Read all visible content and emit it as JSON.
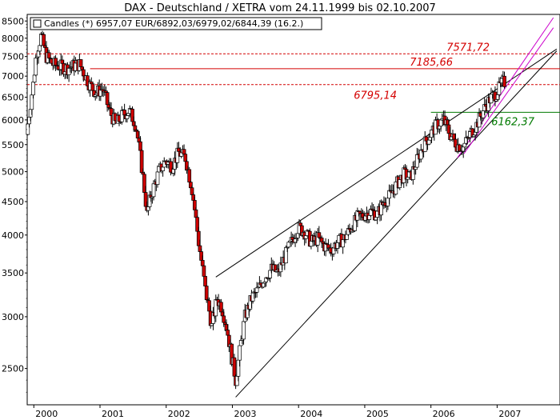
{
  "chart_data": {
    "type": "candlestick",
    "title": "DAX - Deutschland / XETRA vom 24.11.1999 bis 02.10.2007",
    "legend": "Candles (*) 6957,07 EUR/6892,03/6979,02/6844,39 (16.2.)",
    "y_scale": "log",
    "ylim": [
      2200,
      8700
    ],
    "xlim": [
      1999.9,
      2007.95
    ],
    "y_ticks": [
      2500,
      3000,
      3500,
      4000,
      4500,
      5000,
      5500,
      6000,
      6500,
      7000,
      7500,
      8000,
      8500
    ],
    "x_ticks": [
      {
        "label": "2000",
        "x": 2000.0
      },
      {
        "label": "2001",
        "x": 2001.0
      },
      {
        "label": "2002",
        "x": 2002.0
      },
      {
        "label": "2003",
        "x": 2003.0
      },
      {
        "label": "2004",
        "x": 2004.0
      },
      {
        "label": "2005",
        "x": 2005.0
      },
      {
        "label": "2006",
        "x": 2006.0
      },
      {
        "label": "2007",
        "x": 2007.0
      }
    ],
    "levels": [
      {
        "value": 7571.72,
        "label": "7571,72",
        "color": "#d40000",
        "style": "dashed"
      },
      {
        "value": 7185.66,
        "label": "7185,66",
        "color": "#d40000",
        "style": "solid"
      },
      {
        "value": 6795.14,
        "label": "6795,14",
        "color": "#d40000",
        "style": "dashed"
      },
      {
        "value": 6162.37,
        "label": "6162,37",
        "color": "#007a00",
        "style": "solid"
      }
    ],
    "trendlines": [
      {
        "x1": 2002.75,
        "y1": 3450,
        "x2": 2007.9,
        "y2": 7700,
        "color": "#000000"
      },
      {
        "x1": 2003.05,
        "y1": 2260,
        "x2": 2007.9,
        "y2": 7650,
        "color": "#000000"
      },
      {
        "x1": 2006.4,
        "y1": 5250,
        "x2": 2007.85,
        "y2": 8600,
        "color": "#cc00cc"
      },
      {
        "x1": 2006.5,
        "y1": 5330,
        "x2": 2007.85,
        "y2": 8300,
        "color": "#cc00cc"
      }
    ],
    "colors": {
      "up": "#ffffff",
      "down": "#cc0000",
      "wick": "#000000"
    },
    "path": [
      [
        1999.9,
        5700
      ],
      [
        2000.0,
        6800
      ],
      [
        2000.05,
        7600
      ],
      [
        2000.12,
        8050
      ],
      [
        2000.2,
        7500
      ],
      [
        2000.3,
        7300
      ],
      [
        2000.5,
        7200
      ],
      [
        2000.7,
        7300
      ],
      [
        2000.85,
        6800
      ],
      [
        2000.95,
        6600
      ],
      [
        2001.05,
        6700
      ],
      [
        2001.15,
        6200
      ],
      [
        2001.25,
        5900
      ],
      [
        2001.35,
        6100
      ],
      [
        2001.45,
        6200
      ],
      [
        2001.55,
        5900
      ],
      [
        2001.65,
        5000
      ],
      [
        2001.72,
        4300
      ],
      [
        2001.78,
        4600
      ],
      [
        2001.9,
        5000
      ],
      [
        2002.0,
        5200
      ],
      [
        2002.1,
        5100
      ],
      [
        2002.2,
        5350
      ],
      [
        2002.3,
        5250
      ],
      [
        2002.4,
        4700
      ],
      [
        2002.5,
        3900
      ],
      [
        2002.6,
        3300
      ],
      [
        2002.7,
        2900
      ],
      [
        2002.78,
        3200
      ],
      [
        2002.85,
        3100
      ],
      [
        2002.92,
        2900
      ],
      [
        2003.0,
        2600
      ],
      [
        2003.06,
        2400
      ],
      [
        2003.12,
        2650
      ],
      [
        2003.2,
        3000
      ],
      [
        2003.3,
        3200
      ],
      [
        2003.4,
        3300
      ],
      [
        2003.5,
        3450
      ],
      [
        2003.6,
        3550
      ],
      [
        2003.7,
        3500
      ],
      [
        2003.8,
        3700
      ],
      [
        2003.9,
        3900
      ],
      [
        2004.0,
        4100
      ],
      [
        2004.1,
        4050
      ],
      [
        2004.2,
        3900
      ],
      [
        2004.3,
        3950
      ],
      [
        2004.4,
        3850
      ],
      [
        2004.5,
        3800
      ],
      [
        2004.6,
        3900
      ],
      [
        2004.7,
        3950
      ],
      [
        2004.8,
        4100
      ],
      [
        2004.9,
        4250
      ],
      [
        2005.0,
        4300
      ],
      [
        2005.1,
        4350
      ],
      [
        2005.2,
        4300
      ],
      [
        2005.3,
        4500
      ],
      [
        2005.4,
        4600
      ],
      [
        2005.5,
        4800
      ],
      [
        2005.6,
        4950
      ],
      [
        2005.7,
        4900
      ],
      [
        2005.8,
        5200
      ],
      [
        2005.9,
        5500
      ],
      [
        2006.0,
        5700
      ],
      [
        2006.1,
        5900
      ],
      [
        2006.2,
        6000
      ],
      [
        2006.3,
        5700
      ],
      [
        2006.4,
        5500
      ],
      [
        2006.5,
        5450
      ],
      [
        2006.6,
        5700
      ],
      [
        2006.7,
        5900
      ],
      [
        2006.8,
        6200
      ],
      [
        2006.9,
        6450
      ],
      [
        2007.0,
        6600
      ],
      [
        2007.1,
        6850
      ]
    ]
  }
}
